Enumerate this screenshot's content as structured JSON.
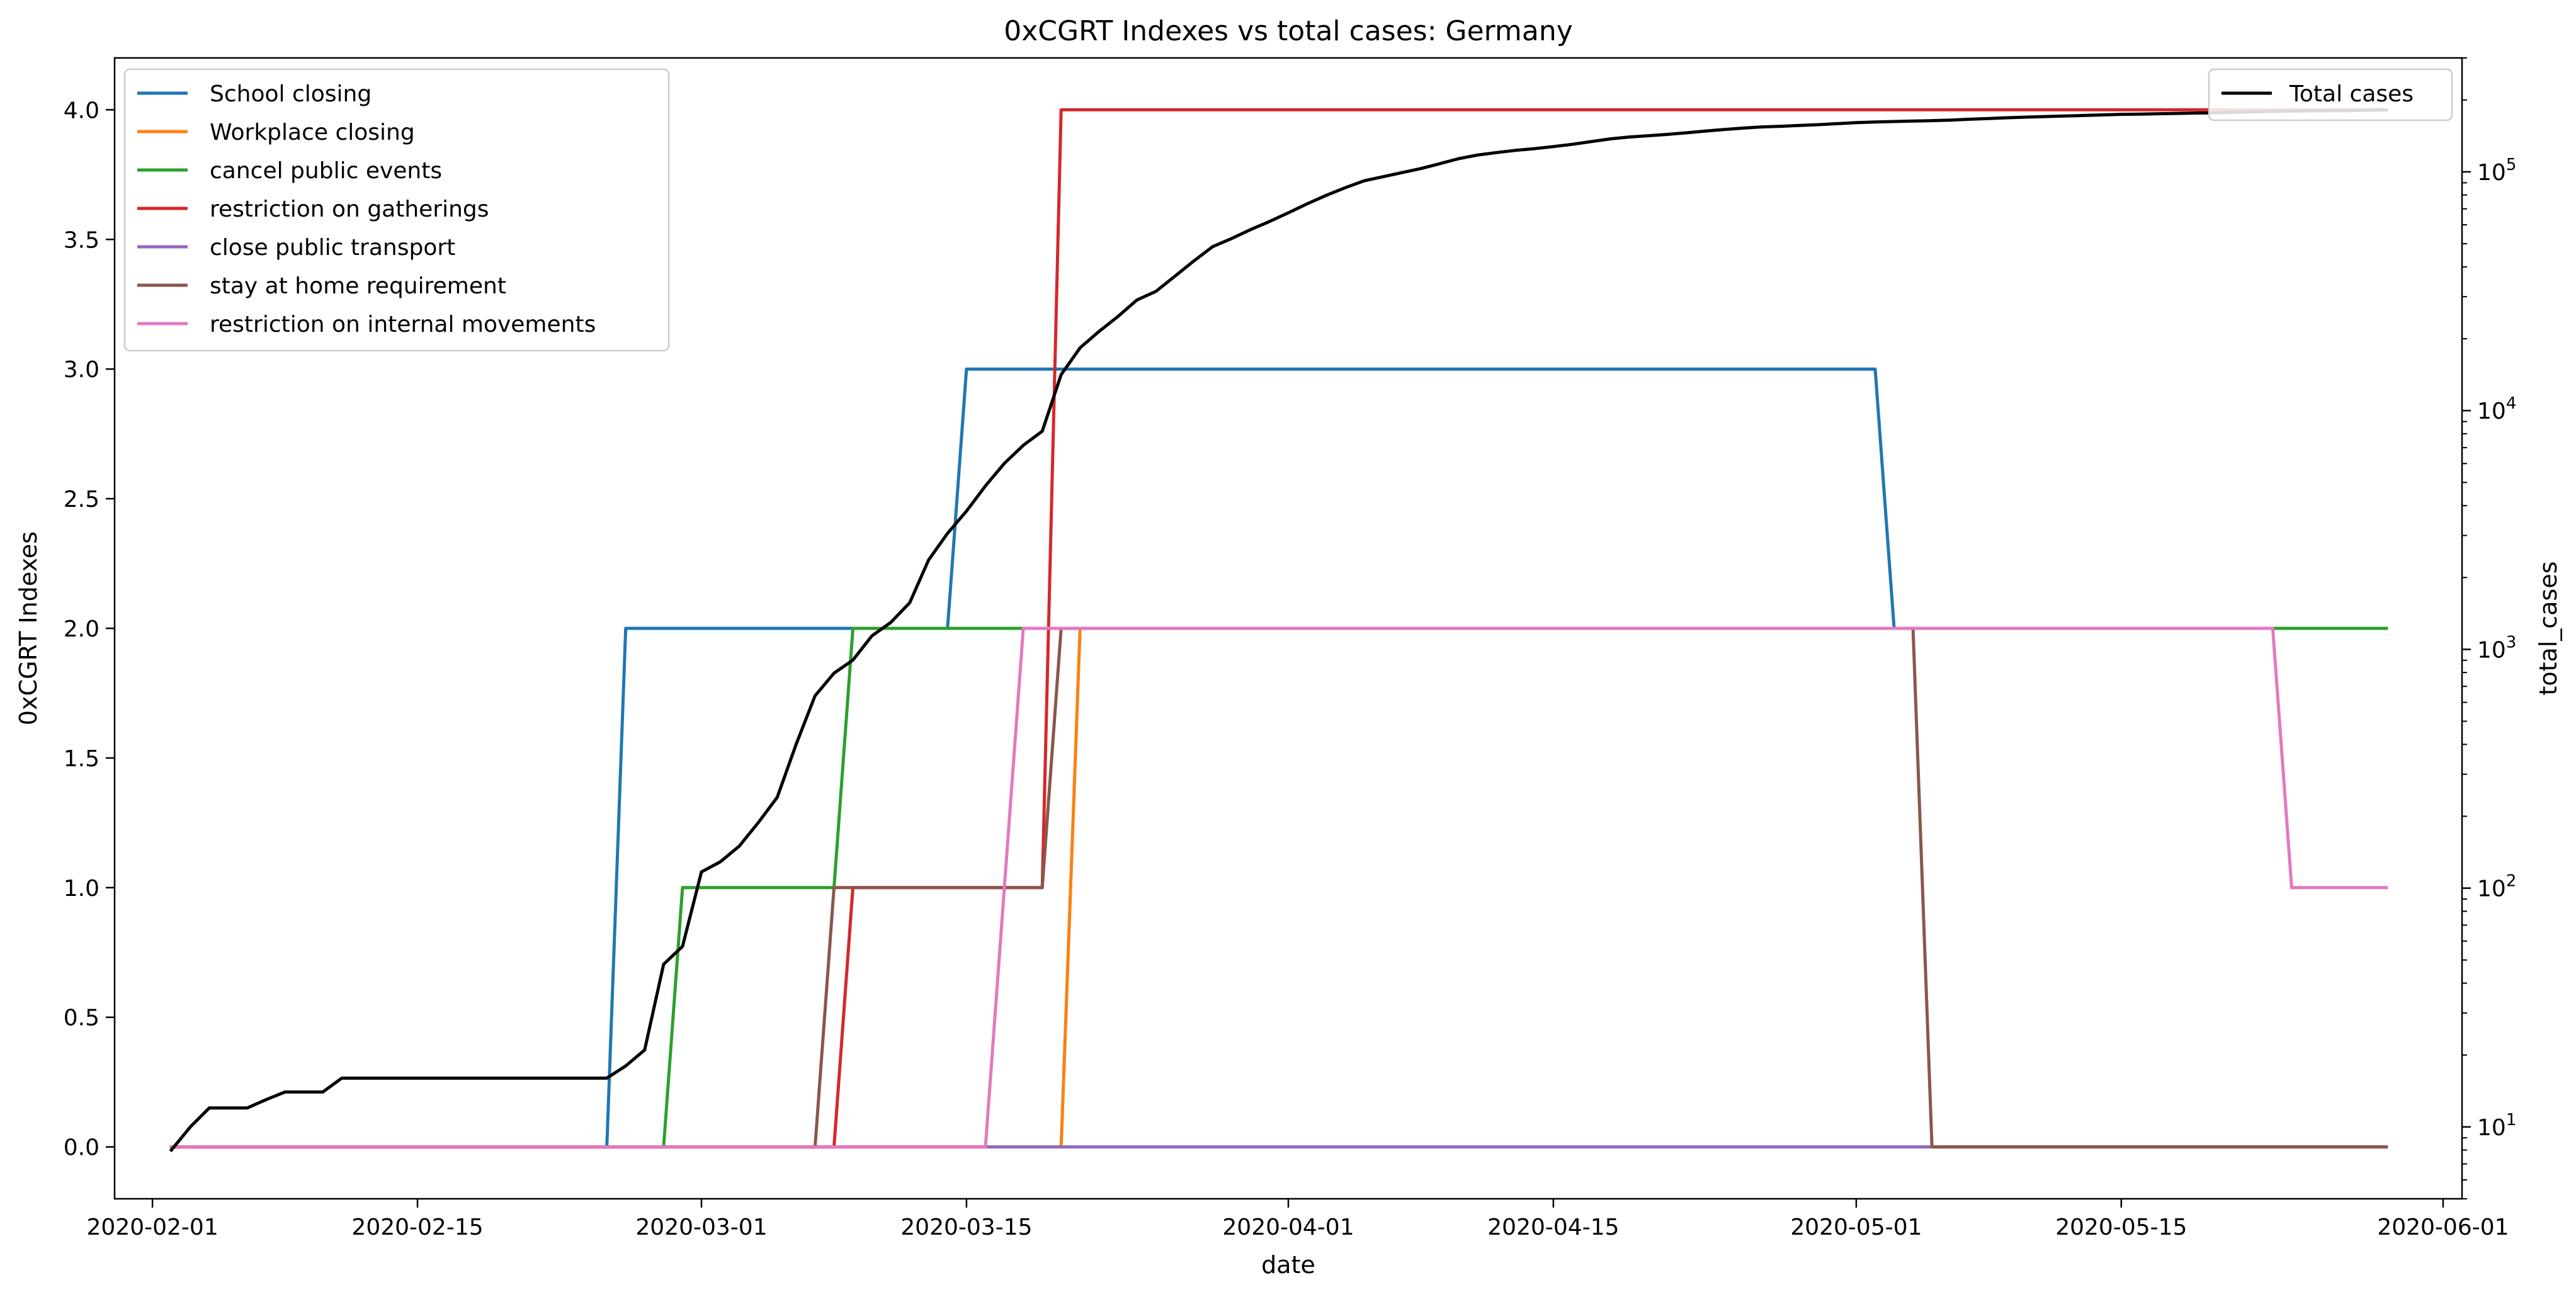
{
  "chart_data": {
    "type": "line",
    "title": "0xCGRT Indexes vs total cases:  Germany",
    "xlabel": "date",
    "ylabel": "0xCGRT Indexes",
    "y2label": "total_cases",
    "xlim": [
      "2020-01-30",
      "2020-06-02"
    ],
    "ylim": [
      -0.2,
      4.2
    ],
    "y2lim": [
      5,
      300000
    ],
    "y2scale": "log",
    "grid": false,
    "x_ticks": [
      "2020-02-01",
      "2020-02-15",
      "2020-03-01",
      "2020-03-15",
      "2020-04-01",
      "2020-04-15",
      "2020-05-01",
      "2020-05-15",
      "2020-06-01"
    ],
    "y_ticks": [
      "0.0",
      "0.5",
      "1.0",
      "1.5",
      "2.0",
      "2.5",
      "3.0",
      "3.5",
      "4.0"
    ],
    "y2_ticks": [
      {
        "value": 10,
        "base": "10",
        "exp": "1"
      },
      {
        "value": 100,
        "base": "10",
        "exp": "2"
      },
      {
        "value": 1000,
        "base": "10",
        "exp": "3"
      },
      {
        "value": 10000,
        "base": "10",
        "exp": "4"
      },
      {
        "value": 100000,
        "base": "10",
        "exp": "5"
      }
    ],
    "legend_left_position": "upper-left",
    "legend_right_position": "upper-right",
    "series": [
      {
        "name": "School closing",
        "color": "#1f77b4",
        "axis": "left",
        "points": [
          [
            "2020-02-02",
            0
          ],
          [
            "2020-02-25",
            0
          ],
          [
            "2020-02-26",
            2
          ],
          [
            "2020-03-14",
            2
          ],
          [
            "2020-03-15",
            3
          ],
          [
            "2020-05-02",
            3
          ],
          [
            "2020-05-03",
            2
          ],
          [
            "2020-05-29",
            2
          ]
        ]
      },
      {
        "name": "Workplace closing",
        "color": "#ff7f0e",
        "axis": "left",
        "points": [
          [
            "2020-02-02",
            0
          ],
          [
            "2020-03-20",
            0
          ],
          [
            "2020-03-21",
            2
          ],
          [
            "2020-05-29",
            2
          ]
        ]
      },
      {
        "name": "cancel public events",
        "color": "#2ca02c",
        "axis": "left",
        "points": [
          [
            "2020-02-02",
            0
          ],
          [
            "2020-02-28",
            0
          ],
          [
            "2020-02-29",
            1
          ],
          [
            "2020-03-08",
            1
          ],
          [
            "2020-03-09",
            2
          ],
          [
            "2020-05-29",
            2
          ]
        ]
      },
      {
        "name": "restriction on gatherings",
        "color": "#d62728",
        "axis": "left",
        "points": [
          [
            "2020-02-02",
            0
          ],
          [
            "2020-03-08",
            0
          ],
          [
            "2020-03-09",
            1
          ],
          [
            "2020-03-19",
            1
          ],
          [
            "2020-03-20",
            4
          ],
          [
            "2020-05-29",
            4
          ]
        ]
      },
      {
        "name": "close public transport",
        "color": "#9467bd",
        "axis": "left",
        "points": [
          [
            "2020-02-02",
            0
          ],
          [
            "2020-05-29",
            0
          ]
        ]
      },
      {
        "name": "stay at home requirement",
        "color": "#8c564b",
        "axis": "left",
        "points": [
          [
            "2020-02-02",
            0
          ],
          [
            "2020-03-07",
            0
          ],
          [
            "2020-03-08",
            1
          ],
          [
            "2020-03-19",
            1
          ],
          [
            "2020-03-20",
            2
          ],
          [
            "2020-05-04",
            2
          ],
          [
            "2020-05-05",
            0
          ],
          [
            "2020-05-29",
            0
          ]
        ]
      },
      {
        "name": "restriction on internal movements",
        "color": "#e377c2",
        "axis": "left",
        "points": [
          [
            "2020-02-02",
            0
          ],
          [
            "2020-03-16",
            0
          ],
          [
            "2020-03-18",
            2
          ],
          [
            "2020-05-23",
            2
          ],
          [
            "2020-05-24",
            1
          ],
          [
            "2020-05-29",
            1
          ]
        ]
      },
      {
        "name": "Total cases",
        "color": "#000000",
        "axis": "right",
        "points": [
          [
            "2020-02-02",
            8
          ],
          [
            "2020-02-03",
            10
          ],
          [
            "2020-02-04",
            12
          ],
          [
            "2020-02-05",
            12
          ],
          [
            "2020-02-06",
            12
          ],
          [
            "2020-02-07",
            13
          ],
          [
            "2020-02-08",
            14
          ],
          [
            "2020-02-09",
            14
          ],
          [
            "2020-02-10",
            14
          ],
          [
            "2020-02-11",
            16
          ],
          [
            "2020-02-12",
            16
          ],
          [
            "2020-02-13",
            16
          ],
          [
            "2020-02-14",
            16
          ],
          [
            "2020-02-15",
            16
          ],
          [
            "2020-02-16",
            16
          ],
          [
            "2020-02-17",
            16
          ],
          [
            "2020-02-18",
            16
          ],
          [
            "2020-02-19",
            16
          ],
          [
            "2020-02-20",
            16
          ],
          [
            "2020-02-21",
            16
          ],
          [
            "2020-02-22",
            16
          ],
          [
            "2020-02-23",
            16
          ],
          [
            "2020-02-24",
            16
          ],
          [
            "2020-02-25",
            16
          ],
          [
            "2020-02-26",
            18
          ],
          [
            "2020-02-27",
            21
          ],
          [
            "2020-02-28",
            48
          ],
          [
            "2020-02-29",
            57
          ],
          [
            "2020-03-01",
            117
          ],
          [
            "2020-03-02",
            129
          ],
          [
            "2020-03-03",
            150
          ],
          [
            "2020-03-04",
            188
          ],
          [
            "2020-03-05",
            240
          ],
          [
            "2020-03-06",
            400
          ],
          [
            "2020-03-07",
            639
          ],
          [
            "2020-03-08",
            795
          ],
          [
            "2020-03-09",
            902
          ],
          [
            "2020-03-10",
            1139
          ],
          [
            "2020-03-11",
            1296
          ],
          [
            "2020-03-12",
            1567
          ],
          [
            "2020-03-13",
            2369
          ],
          [
            "2020-03-14",
            3062
          ],
          [
            "2020-03-15",
            3795
          ],
          [
            "2020-03-16",
            4838
          ],
          [
            "2020-03-17",
            6012
          ],
          [
            "2020-03-18",
            7156
          ],
          [
            "2020-03-19",
            8198
          ],
          [
            "2020-03-20",
            14138
          ],
          [
            "2020-03-21",
            18323
          ],
          [
            "2020-03-22",
            21463
          ],
          [
            "2020-03-23",
            24774
          ],
          [
            "2020-03-24",
            29056
          ],
          [
            "2020-03-25",
            31554
          ],
          [
            "2020-03-26",
            36508
          ],
          [
            "2020-03-27",
            42288
          ],
          [
            "2020-03-28",
            48582
          ],
          [
            "2020-03-29",
            52547
          ],
          [
            "2020-03-30",
            57298
          ],
          [
            "2020-03-31",
            61913
          ],
          [
            "2020-04-01",
            67366
          ],
          [
            "2020-04-02",
            73522
          ],
          [
            "2020-04-03",
            79696
          ],
          [
            "2020-04-04",
            85778
          ],
          [
            "2020-04-05",
            91714
          ],
          [
            "2020-04-06",
            95391
          ],
          [
            "2020-04-07",
            99225
          ],
          [
            "2020-04-08",
            103228
          ],
          [
            "2020-04-09",
            108202
          ],
          [
            "2020-04-10",
            113525
          ],
          [
            "2020-04-11",
            117658
          ],
          [
            "2020-04-12",
            120479
          ],
          [
            "2020-04-13",
            123016
          ],
          [
            "2020-04-14",
            125098
          ],
          [
            "2020-04-15",
            127584
          ],
          [
            "2020-04-16",
            130450
          ],
          [
            "2020-04-17",
            133830
          ],
          [
            "2020-04-18",
            137439
          ],
          [
            "2020-04-19",
            139897
          ],
          [
            "2020-04-20",
            141672
          ],
          [
            "2020-04-21",
            143457
          ],
          [
            "2020-04-22",
            145694
          ],
          [
            "2020-04-23",
            148046
          ],
          [
            "2020-04-24",
            150383
          ],
          [
            "2020-04-25",
            152438
          ],
          [
            "2020-04-26",
            154175
          ],
          [
            "2020-04-27",
            155193
          ],
          [
            "2020-04-28",
            156337
          ],
          [
            "2020-04-29",
            157641
          ],
          [
            "2020-04-30",
            159119
          ],
          [
            "2020-05-01",
            160758
          ],
          [
            "2020-05-02",
            161703
          ],
          [
            "2020-05-03",
            162496
          ],
          [
            "2020-05-04",
            163175
          ],
          [
            "2020-05-05",
            163860
          ],
          [
            "2020-05-06",
            164807
          ],
          [
            "2020-05-07",
            166091
          ],
          [
            "2020-05-08",
            167300
          ],
          [
            "2020-05-09",
            168551
          ],
          [
            "2020-05-10",
            169575
          ],
          [
            "2020-05-11",
            170508
          ],
          [
            "2020-05-12",
            171306
          ],
          [
            "2020-05-13",
            172239
          ],
          [
            "2020-05-14",
            173152
          ],
          [
            "2020-05-15",
            174098
          ],
          [
            "2020-05-16",
            174478
          ],
          [
            "2020-05-17",
            175233
          ],
          [
            "2020-05-18",
            175752
          ],
          [
            "2020-05-19",
            176369
          ],
          [
            "2020-05-20",
            176551
          ],
          [
            "2020-05-21",
            177778
          ],
          [
            "2020-05-22",
            178473
          ],
          [
            "2020-05-23",
            179021
          ],
          [
            "2020-05-24",
            179710
          ],
          [
            "2020-05-25",
            179986
          ],
          [
            "2020-05-26",
            180328
          ],
          [
            "2020-05-27",
            180600
          ],
          [
            "2020-05-28",
            181200
          ],
          [
            "2020-05-29",
            181815
          ]
        ]
      }
    ]
  }
}
